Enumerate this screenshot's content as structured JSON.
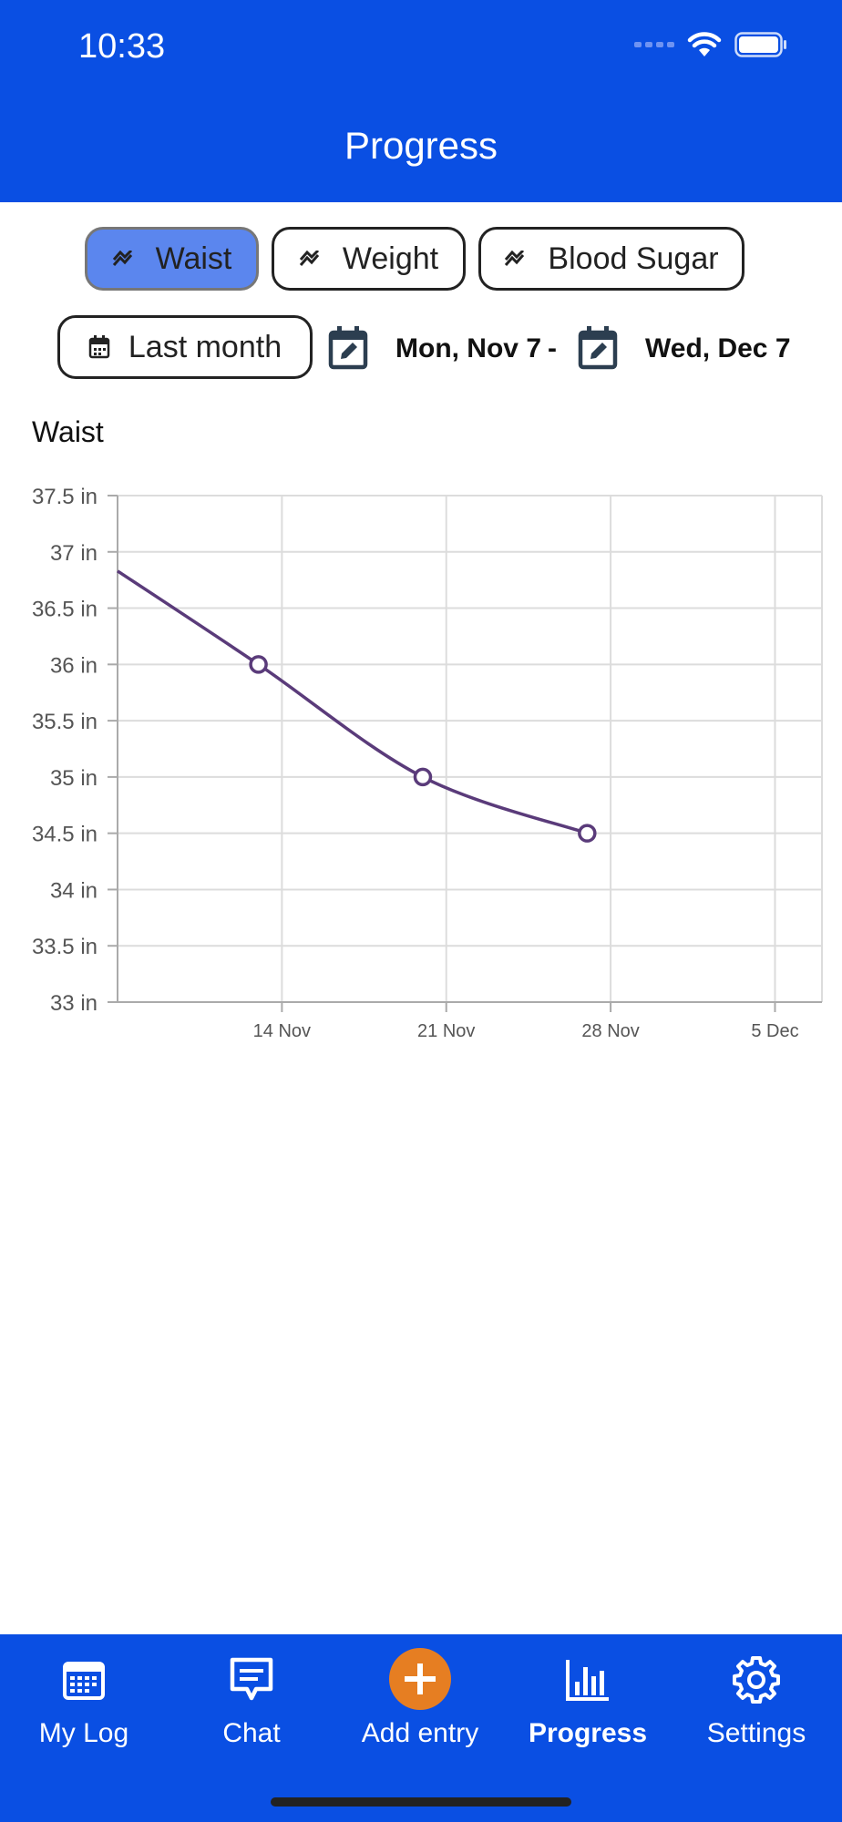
{
  "status": {
    "time": "10:33"
  },
  "header": {
    "title": "Progress"
  },
  "metrics": [
    {
      "label": "Waist",
      "active": true
    },
    {
      "label": "Weight",
      "active": false
    },
    {
      "label": "Blood Sugar",
      "active": false
    }
  ],
  "range": {
    "preset_label": "Last month",
    "start_date": "Mon, Nov 7",
    "separator": "-",
    "end_date": "Wed, Dec 7"
  },
  "chart_title": "Waist",
  "chart_data": {
    "type": "line",
    "title": "Waist",
    "x": [
      "2022-11-07",
      "2022-11-13",
      "2022-11-20",
      "2022-11-27"
    ],
    "values": [
      36.83,
      36,
      35,
      34.5
    ],
    "markers": [
      false,
      true,
      true,
      true
    ],
    "x_tick_labels": [
      "14 Nov",
      "21 Nov",
      "28 Nov",
      "5 Dec"
    ],
    "y_tick_labels": [
      "37.5 in",
      "37 in",
      "36.5 in",
      "36 in",
      "35.5 in",
      "35 in",
      "34.5 in",
      "34 in",
      "33.5 in",
      "33 in"
    ],
    "ylim": [
      33,
      37.5
    ],
    "unit": "in",
    "grid": true,
    "line_color": "#5a3b7a"
  },
  "tabs": [
    {
      "label": "My Log",
      "icon": "calendar-icon",
      "active": false
    },
    {
      "label": "Chat",
      "icon": "chat-icon",
      "active": false
    },
    {
      "label": "Add entry",
      "icon": "plus-icon",
      "active": false
    },
    {
      "label": "Progress",
      "icon": "bar-chart-icon",
      "active": true
    },
    {
      "label": "Settings",
      "icon": "gear-icon",
      "active": false
    }
  ],
  "colors": {
    "brand": "#0a4fe3",
    "chip_active": "#5b86ee",
    "add_button": "#e67e22"
  }
}
